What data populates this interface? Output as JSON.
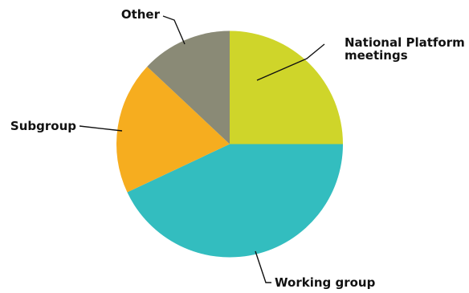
{
  "chart_data": {
    "type": "pie",
    "title": "",
    "start_angle_deg": 0,
    "direction": "clockwise",
    "slices": [
      {
        "name": "National Platform meetings",
        "label_lines": [
          "National Platform",
          "meetings"
        ],
        "value": 25,
        "color": "#cfd52a"
      },
      {
        "name": "Working group",
        "label_lines": [
          "Working group"
        ],
        "value": 43,
        "color": "#33bdbf"
      },
      {
        "name": "Subgroup",
        "label_lines": [
          "Subgroup"
        ],
        "value": 19,
        "color": "#f6ad1f"
      },
      {
        "name": "Other",
        "label_lines": [
          "Other"
        ],
        "value": 13,
        "color": "#8a8a76"
      }
    ]
  }
}
